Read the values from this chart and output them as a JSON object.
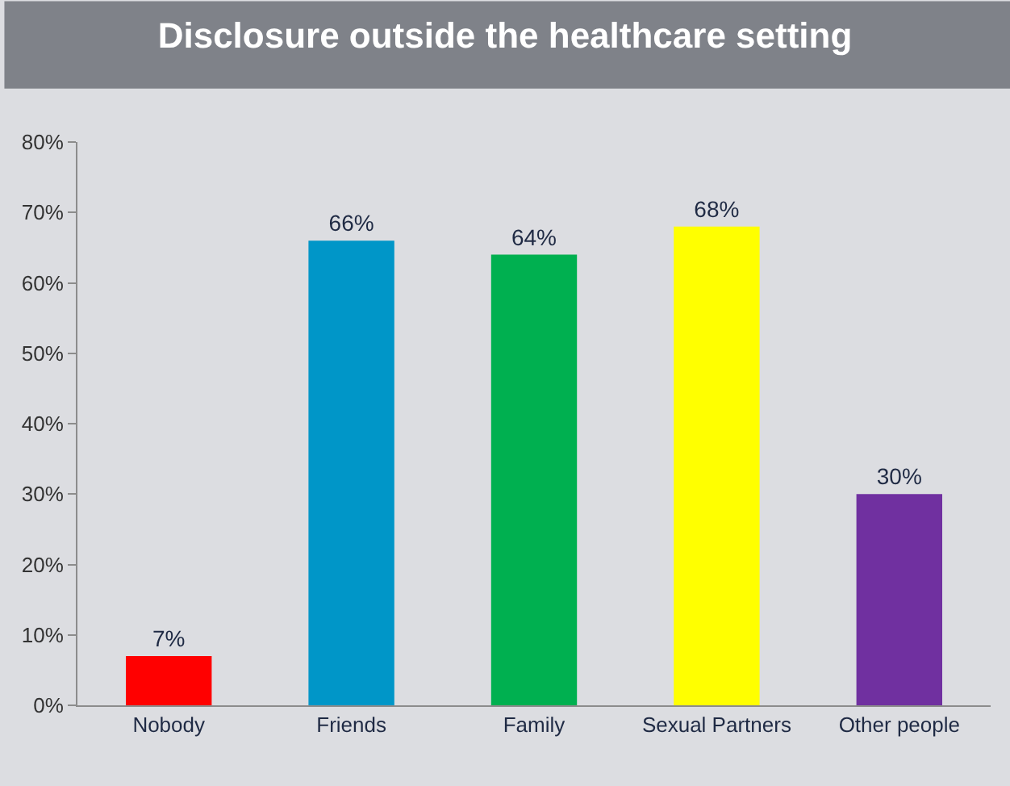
{
  "chart_data": {
    "type": "bar",
    "title": "Disclosure outside the healthcare setting",
    "categories": [
      "Nobody",
      "Friends",
      "Family",
      "Sexual Partners",
      "Other people"
    ],
    "values": [
      7,
      66,
      64,
      68,
      30
    ],
    "colors": [
      "#ff0000",
      "#0096c8",
      "#00b050",
      "#ffff00",
      "#7030a0"
    ],
    "value_labels": [
      "7%",
      "66%",
      "64%",
      "68%",
      "30%"
    ],
    "ylim": [
      0,
      80
    ],
    "yticks": [
      {
        "value": 0,
        "label": "0%"
      },
      {
        "value": 10,
        "label": "10%"
      },
      {
        "value": 20,
        "label": "20%"
      },
      {
        "value": 30,
        "label": "30%"
      },
      {
        "value": 40,
        "label": "40%"
      },
      {
        "value": 50,
        "label": "50%"
      },
      {
        "value": 60,
        "label": "60%"
      },
      {
        "value": 70,
        "label": "70%"
      },
      {
        "value": 80,
        "label": "80%"
      }
    ],
    "grid": false,
    "legend": false
  }
}
